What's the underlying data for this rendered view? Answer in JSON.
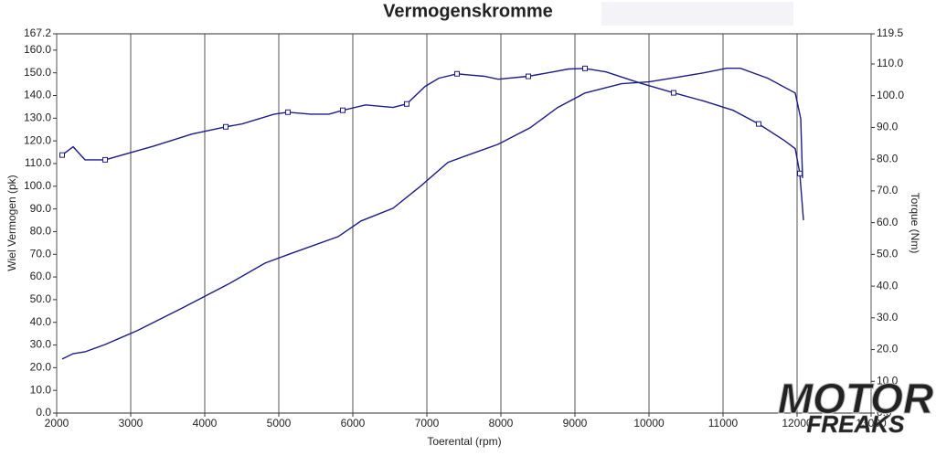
{
  "chart_data": {
    "type": "line",
    "title": "Vermogenskromme",
    "x_label": "Toerental (rpm)",
    "y_label": "Wiel Vermogen (pk)",
    "y2_label": "Torque (Nm)",
    "xlim": [
      2000,
      13000
    ],
    "xticks": [
      2000,
      3000,
      4000,
      5000,
      6000,
      7000,
      8000,
      9000,
      10000,
      11000,
      12000,
      13000
    ],
    "ylim": [
      0,
      167.2
    ],
    "yticks": [
      {
        "value": 0,
        "label": "0.0"
      },
      {
        "value": 10,
        "label": "10.0"
      },
      {
        "value": 20,
        "label": "20.0"
      },
      {
        "value": 30,
        "label": "30.0"
      },
      {
        "value": 40,
        "label": "40.0"
      },
      {
        "value": 50,
        "label": "50.0"
      },
      {
        "value": 60,
        "label": "60.0"
      },
      {
        "value": 70,
        "label": "70.0"
      },
      {
        "value": 80,
        "label": "80.0"
      },
      {
        "value": 90,
        "label": "90.0"
      },
      {
        "value": 100,
        "label": "100.0"
      },
      {
        "value": 110,
        "label": "110.0"
      },
      {
        "value": 120,
        "label": "120.0"
      },
      {
        "value": 130,
        "label": "130.0"
      },
      {
        "value": 140,
        "label": "140.0"
      },
      {
        "value": 150,
        "label": "150.0"
      },
      {
        "value": 160,
        "label": "160.0"
      },
      167.2
    ],
    "y2lim": [
      0,
      119.5
    ],
    "y2ticks": [
      {
        "value": 0,
        "label": "0.0"
      },
      {
        "value": 10,
        "label": "10.0"
      },
      {
        "value": 20,
        "label": "20.0"
      },
      {
        "value": 30,
        "label": "30.0"
      },
      {
        "value": 40,
        "label": "40.0"
      },
      {
        "value": 50,
        "label": "50.0"
      },
      {
        "value": 60,
        "label": "60.0"
      },
      {
        "value": 70,
        "label": "70.0"
      },
      {
        "value": 80,
        "label": "80.0"
      },
      {
        "value": 90,
        "label": "90.0"
      },
      {
        "value": 100,
        "label": "100.0"
      },
      {
        "value": 110,
        "label": "110.0"
      },
      119.5
    ],
    "grid": "x",
    "series": [
      {
        "color": "#1c1c8a",
        "x": [
          2074,
          2222,
          2383,
          2654,
          3086,
          3704,
          4321,
          4815,
          5185,
          5802,
          6111,
          6543,
          6914,
          7284,
          7654,
          7963,
          8395,
          8765,
          9136,
          9630,
          10000,
          10370,
          10741,
          11049,
          11235,
          11605,
          11975,
          12049,
          12074
        ],
        "values": [
          23.8,
          26.2,
          27.0,
          30.2,
          36.3,
          46.4,
          56.9,
          66.1,
          70.6,
          77.8,
          84.7,
          90.3,
          100.0,
          110.5,
          114.9,
          118.5,
          125.8,
          134.7,
          141.1,
          145.2,
          146.0,
          148.0,
          150.0,
          152.0,
          152.0,
          147.6,
          141.1,
          129.8,
          103.6
        ]
      },
      {
        "color": "#1c1c8a",
        "axis": "y2",
        "marker": "square",
        "x": [
          2074,
          2222,
          2383,
          2654,
          3309,
          3827,
          4284,
          4506,
          4938,
          5123,
          5432,
          5679,
          5864,
          6173,
          6543,
          6728,
          6975,
          7160,
          7407,
          7778,
          7963,
          8370,
          8704,
          8914,
          9136,
          9420,
          9877,
          10333,
          10741,
          11136,
          11481,
          11827,
          11975,
          12037,
          12086
        ],
        "values": [
          81.3,
          83.9,
          79.8,
          79.8,
          84.1,
          87.9,
          90.2,
          91.1,
          94.2,
          94.8,
          94.2,
          94.2,
          95.4,
          97.1,
          96.3,
          97.4,
          102.9,
          105.5,
          106.9,
          106.1,
          105.2,
          106.1,
          107.5,
          108.4,
          108.6,
          107.5,
          104.0,
          100.9,
          98.3,
          95.4,
          91.1,
          85.9,
          83.3,
          75.5,
          60.8
        ]
      }
    ]
  },
  "watermark": [
    "MOTOR",
    "FREAKS"
  ]
}
